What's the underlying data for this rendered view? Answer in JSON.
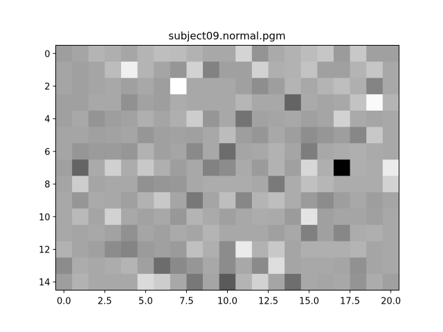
{
  "chart_data": {
    "type": "heatmap",
    "title": "subject09.normal.pgm",
    "xlabel": "",
    "ylabel": "",
    "colormap": "gray",
    "xlim": [
      -0.5,
      20.5
    ],
    "ylim": [
      14.5,
      -0.5
    ],
    "x_ticks": [
      0.0,
      2.5,
      5.0,
      7.5,
      10.0,
      12.5,
      15.0,
      17.5,
      20.0
    ],
    "x_tick_labels": [
      "0.0",
      "2.5",
      "5.0",
      "7.5",
      "10.0",
      "12.5",
      "15.0",
      "17.5",
      "20.0"
    ],
    "y_ticks": [
      0,
      2,
      4,
      6,
      8,
      10,
      12,
      14
    ],
    "y_tick_labels": [
      "0",
      "2",
      "4",
      "6",
      "8",
      "10",
      "12",
      "14"
    ],
    "grid": false,
    "legend": "none",
    "values": [
      [
        158,
        165,
        180,
        175,
        166,
        180,
        190,
        188,
        178,
        168,
        168,
        212,
        148,
        170,
        178,
        188,
        198,
        155,
        200,
        160,
        160
      ],
      [
        165,
        160,
        165,
        188,
        240,
        180,
        165,
        150,
        210,
        130,
        160,
        160,
        210,
        175,
        178,
        195,
        160,
        160,
        180,
        198,
        168
      ],
      [
        165,
        160,
        165,
        168,
        160,
        168,
        158,
        255,
        168,
        168,
        168,
        160,
        142,
        158,
        180,
        168,
        180,
        190,
        175,
        132,
        168
      ],
      [
        160,
        160,
        168,
        168,
        145,
        162,
        158,
        172,
        168,
        168,
        168,
        182,
        168,
        168,
        100,
        170,
        165,
        168,
        195,
        250,
        180
      ],
      [
        160,
        168,
        148,
        158,
        162,
        175,
        165,
        175,
        205,
        150,
        168,
        115,
        162,
        165,
        168,
        160,
        165,
        210,
        170,
        165,
        168
      ],
      [
        165,
        165,
        160,
        162,
        165,
        150,
        160,
        162,
        160,
        168,
        188,
        158,
        150,
        168,
        158,
        142,
        150,
        158,
        135,
        200,
        168
      ],
      [
        165,
        150,
        155,
        155,
        150,
        178,
        160,
        165,
        138,
        168,
        108,
        165,
        168,
        178,
        165,
        125,
        168,
        172,
        175,
        170,
        168
      ],
      [
        160,
        100,
        170,
        208,
        172,
        200,
        175,
        158,
        168,
        130,
        140,
        170,
        155,
        178,
        160,
        215,
        175,
        0,
        175,
        172,
        235
      ],
      [
        165,
        205,
        165,
        168,
        168,
        145,
        150,
        152,
        168,
        172,
        172,
        172,
        168,
        122,
        172,
        192,
        182,
        172,
        172,
        172,
        210
      ],
      [
        168,
        150,
        170,
        168,
        160,
        178,
        200,
        165,
        120,
        165,
        190,
        135,
        180,
        190,
        172,
        155,
        140,
        158,
        168,
        158,
        165
      ],
      [
        168,
        185,
        165,
        210,
        168,
        162,
        168,
        152,
        180,
        170,
        160,
        168,
        172,
        170,
        155,
        228,
        160,
        165,
        165,
        160,
        168
      ],
      [
        168,
        165,
        168,
        162,
        145,
        165,
        160,
        170,
        165,
        180,
        168,
        168,
        168,
        160,
        168,
        128,
        160,
        135,
        172,
        175,
        168
      ],
      [
        178,
        165,
        160,
        140,
        132,
        155,
        160,
        155,
        192,
        175,
        140,
        235,
        178,
        200,
        165,
        175,
        175,
        175,
        180,
        165,
        168
      ],
      [
        140,
        172,
        168,
        172,
        180,
        160,
        108,
        138,
        150,
        168,
        140,
        168,
        138,
        222,
        165,
        168,
        168,
        165,
        145,
        165,
        168
      ],
      [
        158,
        178,
        168,
        168,
        168,
        218,
        205,
        168,
        120,
        165,
        90,
        180,
        210,
        165,
        110,
        168,
        165,
        168,
        148,
        172,
        160
      ]
    ]
  }
}
